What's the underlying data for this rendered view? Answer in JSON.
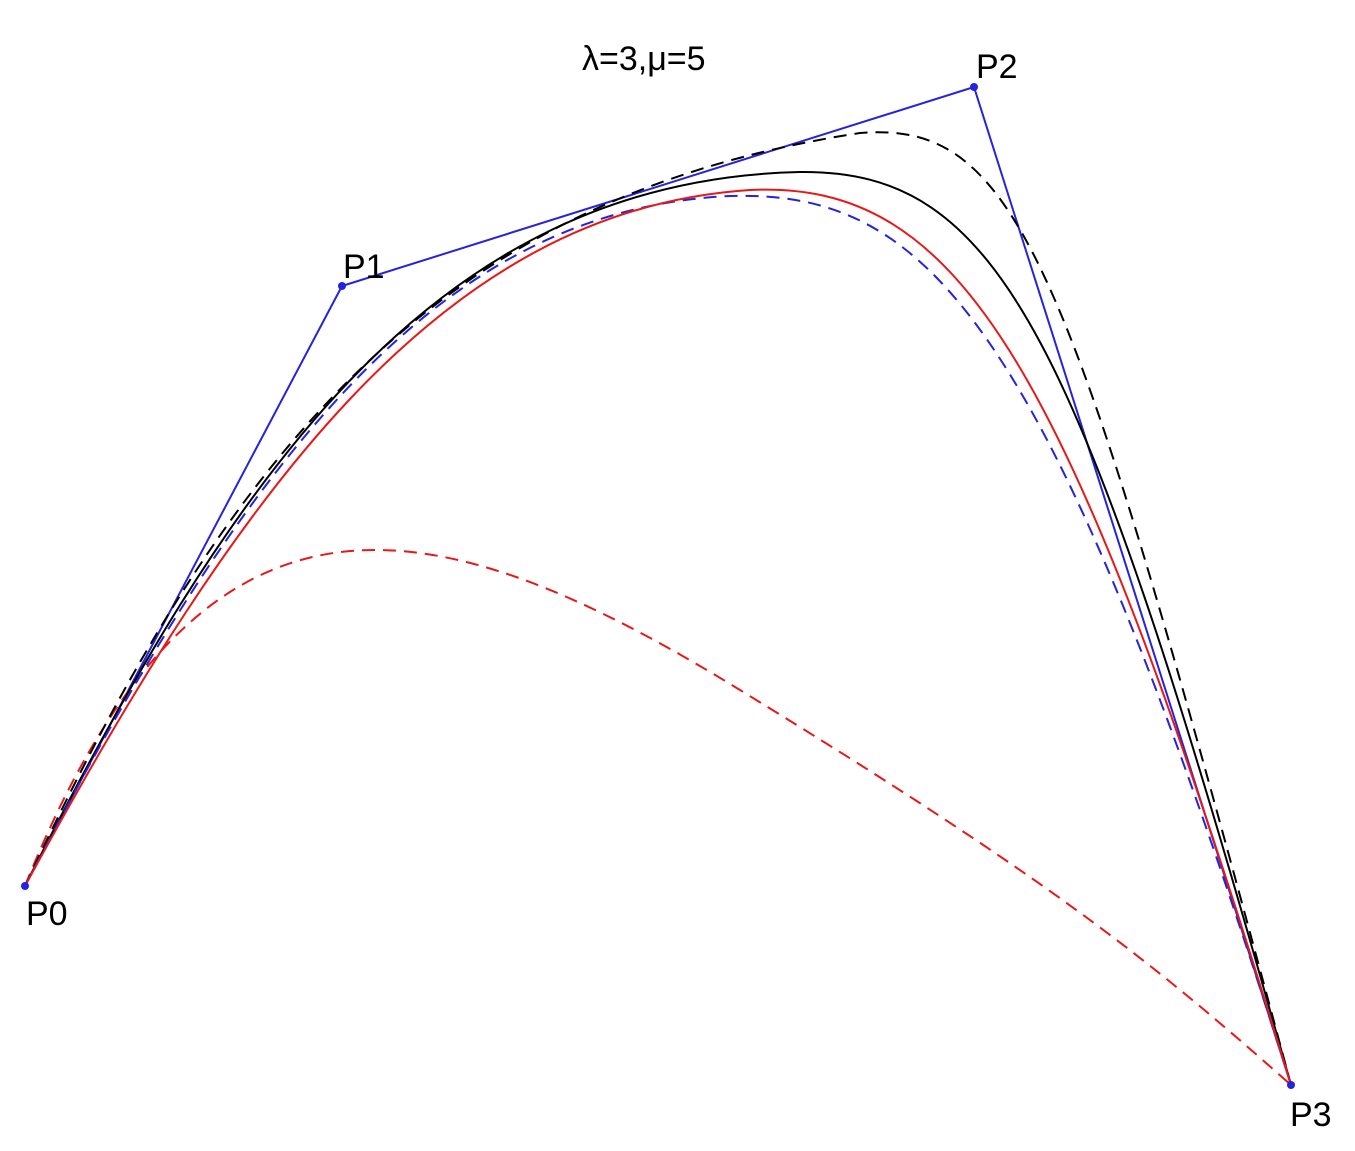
{
  "title": "λ=3,μ=5",
  "points": [
    {
      "label": "P0"
    },
    {
      "label": "P1"
    },
    {
      "label": "P2"
    },
    {
      "label": "P3"
    }
  ],
  "colors": {
    "control_polygon": "#2323e0",
    "control_point": "#2323e0",
    "curve_solid_black": "#000000",
    "curve_dashed_black": "#000000",
    "curve_solid_red": "#e81818",
    "curve_dashed_blue": "#2323e0",
    "curve_dashed_red": "#e81818"
  }
}
